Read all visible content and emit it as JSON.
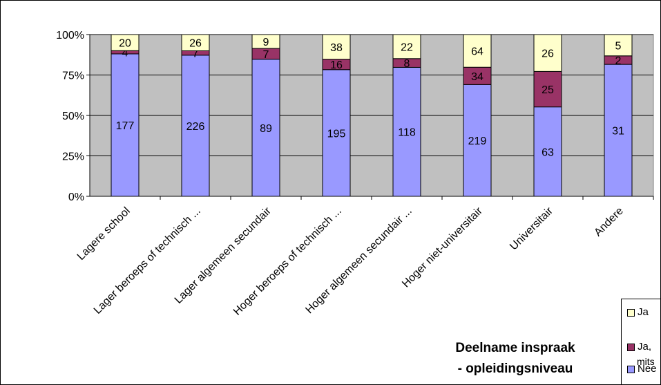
{
  "chart_data": {
    "type": "bar",
    "stacked": "percent",
    "title": "Deelname inspraak - opleidingsniveau",
    "title_lines": [
      "Deelname inspraak",
      "- opleidingsniveau"
    ],
    "categories": [
      "Lagere school",
      "Lager beroeps of technisch ...",
      "Lager algemeen secundair",
      "Hoger beroeps of technisch ...",
      "Hoger algemeen secundair ...",
      "Hoger niet-universitair",
      "Universitair",
      "Andere"
    ],
    "series": [
      {
        "name": "Nee",
        "color": "#9999ff",
        "values": [
          177,
          226,
          89,
          195,
          118,
          219,
          63,
          31
        ]
      },
      {
        "name": "Ja, mits",
        "color": "#993366",
        "values": [
          4,
          7,
          7,
          16,
          8,
          34,
          25,
          2
        ]
      },
      {
        "name": "Ja",
        "color": "#ffffcc",
        "values": [
          20,
          26,
          9,
          38,
          22,
          64,
          26,
          5
        ]
      }
    ],
    "y_ticks": [
      "0%",
      "25%",
      "50%",
      "75%",
      "100%"
    ],
    "ylim": [
      0,
      100
    ],
    "grid": true,
    "plot_background": "#c0c0c0",
    "legend_position": "bottom-right",
    "legend_labels": {
      "ja": "Ja",
      "ja_mits_line1": "Ja,",
      "ja_mits_line2": "mits",
      "nee": "Nee"
    }
  }
}
